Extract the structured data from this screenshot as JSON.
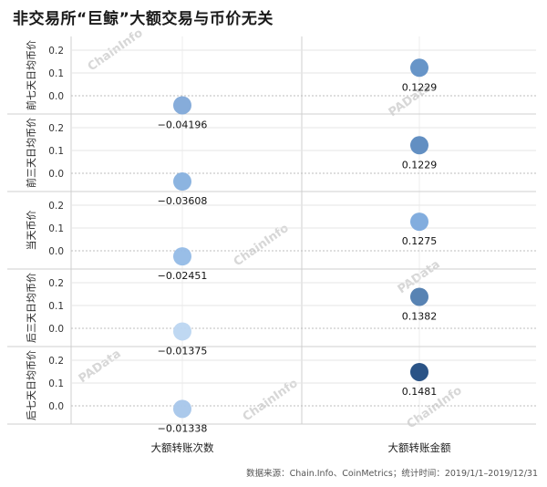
{
  "title": "非交易所“巨鲸”大额交易与币价无关",
  "footer": "数据来源：Chain.Info、CoinMetrics；统计时间：2019/1/1–2019/12/31",
  "watermarks": [
    "ChainInfo",
    "PAData"
  ],
  "chart_data": {
    "type": "scatter",
    "columns": [
      "大额转账次数",
      "大额转账金额"
    ],
    "rows": [
      "前七天日均币价",
      "前三天日均币价",
      "当天币价",
      "后三天日均币价",
      "后七天日均币价"
    ],
    "yticks": [
      0.0,
      0.1,
      0.2
    ],
    "values": [
      [
        -0.04196,
        0.1229
      ],
      [
        -0.03608,
        0.1229
      ],
      [
        -0.02451,
        0.1275
      ],
      [
        -0.01375,
        0.1382
      ],
      [
        -0.01338,
        0.1481
      ]
    ],
    "labels": [
      [
        "−0.04196",
        "0.1229"
      ],
      [
        "−0.03608",
        "0.1229"
      ],
      [
        "−0.02451",
        "0.1275"
      ],
      [
        "−0.01375",
        "0.1382"
      ],
      [
        "−0.01338",
        "0.1481"
      ]
    ],
    "colors": [
      [
        "#7fa8d8",
        "#5f8fc5"
      ],
      [
        "#86b0de",
        "#5a89bf"
      ],
      [
        "#94bbe6",
        "#7ba9dc"
      ],
      [
        "#bcd6f1",
        "#4f7caf"
      ],
      [
        "#a7c6ea",
        "#1f4a80"
      ]
    ]
  }
}
